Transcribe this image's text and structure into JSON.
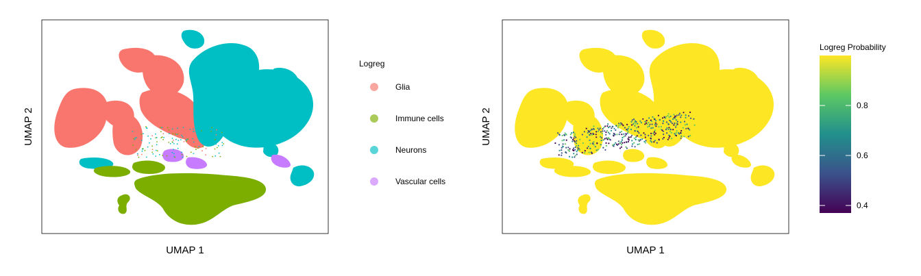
{
  "chart_data": [
    {
      "type": "scatter",
      "title": "",
      "xlabel": "UMAP 1",
      "ylabel": "UMAP 2",
      "ticks_shown": false,
      "grid": false,
      "legend": {
        "title": "Logreg",
        "position": "right",
        "entries": [
          {
            "label": "Glia",
            "color": "#F8766D"
          },
          {
            "label": "Immune cells",
            "color": "#7CAE00"
          },
          {
            "label": "Neurons",
            "color": "#00BFC4"
          },
          {
            "label": "Vascular cells",
            "color": "#C77CFF"
          }
        ]
      }
    },
    {
      "type": "scatter",
      "title": "",
      "xlabel": "UMAP 1",
      "ylabel": "UMAP 2",
      "ticks_shown": false,
      "grid": false,
      "colorbar": {
        "title": "Logreg Probability",
        "position": "right",
        "range": [
          0.37,
          1.0
        ],
        "ticks": [
          "0.8",
          "0.6",
          "0.4"
        ],
        "tick_values": [
          0.8,
          0.6,
          0.4
        ],
        "palette": [
          "#440154",
          "#3B528B",
          "#21908C",
          "#5DC863",
          "#FDE725"
        ]
      }
    }
  ],
  "colors": {
    "frame": "#333333",
    "high_prob": "#FDE725",
    "low_prob_mix": [
      "#3B528B",
      "#21908C",
      "#5DC863",
      "#440154"
    ]
  }
}
